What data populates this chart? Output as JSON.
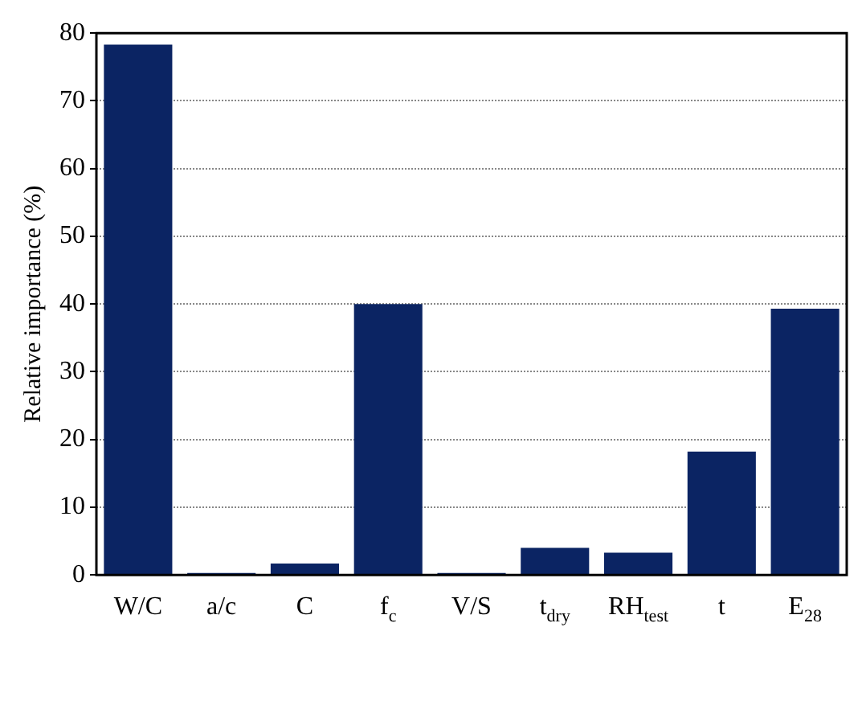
{
  "chart_data": {
    "type": "bar",
    "ylabel": "Relative importance (%)",
    "categories": [
      "W/C",
      "a/c",
      "C",
      "f$_{c}$",
      "V/S",
      "t$_{dry}$",
      "RH$_{test}$",
      "t",
      "E$_{28}$"
    ],
    "values": [
      78.3,
      0.3,
      1.7,
      40,
      0.3,
      4,
      3.3,
      18.2,
      39.3
    ],
    "color": "#0b2463",
    "ylim": [
      0,
      80
    ],
    "yticks": [
      0,
      10,
      20,
      30,
      40,
      50,
      60,
      70,
      80
    ],
    "grid": "y"
  }
}
